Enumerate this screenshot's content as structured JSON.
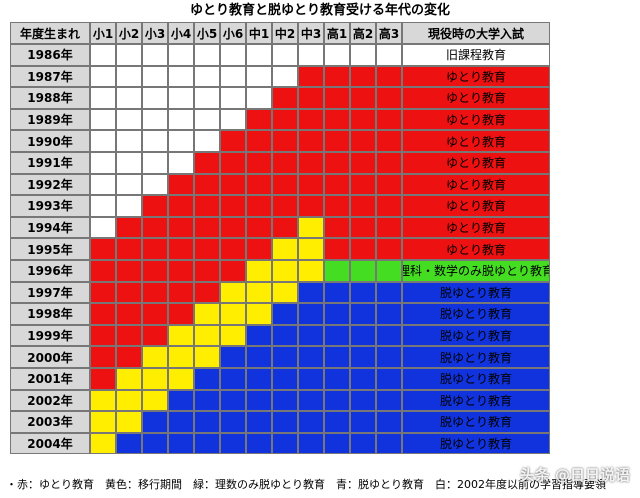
{
  "title": "ゆとり教育と脱ゆとり教育受ける年代の変化",
  "header": {
    "year_label": "年度生まれ",
    "grades": [
      "小1",
      "小2",
      "小3",
      "小4",
      "小5",
      "小6",
      "中1",
      "中2",
      "中3",
      "高1",
      "高2",
      "高3"
    ],
    "exam_label": "現役時の大学入試"
  },
  "colors": {
    "red": "#ee1111",
    "yellow": "#ffee00",
    "green": "#44dd22",
    "blue": "#1133dd",
    "white": "#ffffff",
    "header_gray": "#d8d8d8"
  },
  "rows": [
    {
      "year": "1986年",
      "exam": "旧課程教育",
      "cells": "WWWWWWWWWWWW",
      "exam_color": "white"
    },
    {
      "year": "1987年",
      "exam": "ゆとり教育",
      "cells": "WWWWWWWWRRRR",
      "exam_color": "red"
    },
    {
      "year": "1988年",
      "exam": "ゆとり教育",
      "cells": "WWWWWWWRRRRR",
      "exam_color": "red"
    },
    {
      "year": "1989年",
      "exam": "ゆとり教育",
      "cells": "WWWWWWRRRRRR",
      "exam_color": "red"
    },
    {
      "year": "1990年",
      "exam": "ゆとり教育",
      "cells": "WWWWWRRRRRRR",
      "exam_color": "red"
    },
    {
      "year": "1991年",
      "exam": "ゆとり教育",
      "cells": "WWWWRRRRRRRR",
      "exam_color": "red"
    },
    {
      "year": "1992年",
      "exam": "ゆとり教育",
      "cells": "WWWRRRRRRRRR",
      "exam_color": "red"
    },
    {
      "year": "1993年",
      "exam": "ゆとり教育",
      "cells": "WWRRRRRRRRRR",
      "exam_color": "red"
    },
    {
      "year": "1994年",
      "exam": "ゆとり教育",
      "cells": "WRRRRRRRYRRR",
      "exam_color": "red"
    },
    {
      "year": "1995年",
      "exam": "ゆとり教育",
      "cells": "RRRRRRRYYRRR",
      "exam_color": "red"
    },
    {
      "year": "1996年",
      "exam": "理科・数学のみ脱ゆとり教育",
      "cells": "RRRRRRYYYGGG",
      "exam_color": "green"
    },
    {
      "year": "1997年",
      "exam": "脱ゆとり教育",
      "cells": "RRRRRYYYBBBB",
      "exam_color": "blue"
    },
    {
      "year": "1998年",
      "exam": "脱ゆとり教育",
      "cells": "RRRRYYYBBBBB",
      "exam_color": "blue"
    },
    {
      "year": "1999年",
      "exam": "脱ゆとり教育",
      "cells": "RRRYYYBBBBBB",
      "exam_color": "blue"
    },
    {
      "year": "2000年",
      "exam": "脱ゆとり教育",
      "cells": "RRYYYBBBBBBB",
      "exam_color": "blue"
    },
    {
      "year": "2001年",
      "exam": "脱ゆとり教育",
      "cells": "RYYYBBBBBBBB",
      "exam_color": "blue"
    },
    {
      "year": "2002年",
      "exam": "脱ゆとり教育",
      "cells": "YYYBBBBBBBBB",
      "exam_color": "blue"
    },
    {
      "year": "2003年",
      "exam": "脱ゆとり教育",
      "cells": "YYBBBBBBBBBB",
      "exam_color": "blue"
    },
    {
      "year": "2004年",
      "exam": "脱ゆとり教育",
      "cells": "YBBBBBBBBBBB",
      "exam_color": "blue"
    }
  ],
  "footnote": "・赤：ゆとり教育　黄色：移行期間　緑：理数のみ脱ゆとり教育　青：脱ゆとり教育　白：2002年度以前の学習指導要領",
  "watermark": "头条 @日日说语"
}
